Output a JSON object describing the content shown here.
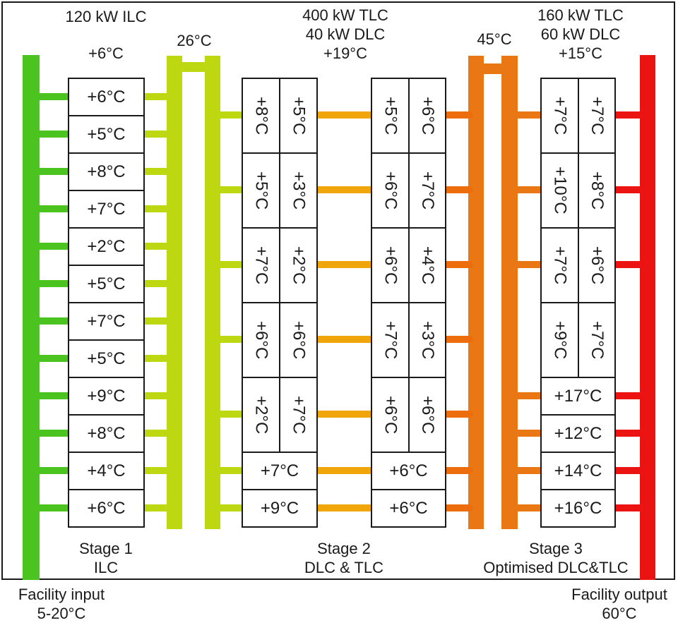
{
  "headers": {
    "stage1_power": "120 kW ILC",
    "stage1_delta": "+6°C",
    "loop1_temp": "26°C",
    "stage2_power_tlc": "400 kW TLC",
    "stage2_power_dlc": "40 kW DLC",
    "stage2_delta": "+19°C",
    "loop2_temp": "45°C",
    "stage3_power_tlc": "160 kW TLC",
    "stage3_power_dlc": "60 kW DLC",
    "stage3_delta": "+15°C"
  },
  "stage1": {
    "row_temps": [
      "+6°C",
      "+5°C",
      "+8°C",
      "+7°C",
      "+2°C",
      "+5°C",
      "+7°C",
      "+5°C",
      "+9°C",
      "+8°C",
      "+4°C",
      "+6°C"
    ]
  },
  "stage2": {
    "left_column": {
      "pair_rows": [
        [
          "+8°C",
          "+5°C"
        ],
        [
          "+5°C",
          "+3°C"
        ],
        [
          "+7°C",
          "+2°C"
        ],
        [
          "+6°C",
          "+6°C"
        ],
        [
          "+2°C",
          "+7°C"
        ]
      ],
      "single_rows": [
        "+7°C",
        "+9°C"
      ]
    },
    "right_column": {
      "pair_rows": [
        [
          "+5°C",
          "+6°C"
        ],
        [
          "+6°C",
          "+7°C"
        ],
        [
          "+6°C",
          "+4°C"
        ],
        [
          "+7°C",
          "+3°C"
        ],
        [
          "+6°C",
          "+6°C"
        ]
      ],
      "single_rows": [
        "+6°C",
        "+6°C"
      ]
    }
  },
  "stage3": {
    "pair_rows": [
      [
        "+7°C",
        "+7°C"
      ],
      [
        "+10°C",
        "+8°C"
      ],
      [
        "+7°C",
        "+6°C"
      ],
      [
        "+9°C",
        "+7°C"
      ]
    ],
    "single_rows": [
      "+17°C",
      "+12°C",
      "+14°C",
      "+16°C"
    ]
  },
  "footers": {
    "stage1_title": "Stage 1",
    "stage1_subtitle": "ILC",
    "stage2_title": "Stage 2",
    "stage2_subtitle": "DLC & TLC",
    "stage3_title": "Stage 3",
    "stage3_subtitle": "Optimised DLC&TLC",
    "facility_input_title": "Facility input",
    "facility_input_range": "5-20°C",
    "facility_output_title": "Facility output",
    "facility_output_temp": "60°C"
  },
  "colors": {
    "facility_input_pipe": "#4cc41f",
    "loop1_pipe": "#bdd711",
    "stage2_internal_link": "#f0a50a",
    "stage2_output_link": "#ed6d0d",
    "loop2_pipe": "#e87714",
    "facility_output_pipe": "#ec1313",
    "outline": "#1a1a1a"
  }
}
